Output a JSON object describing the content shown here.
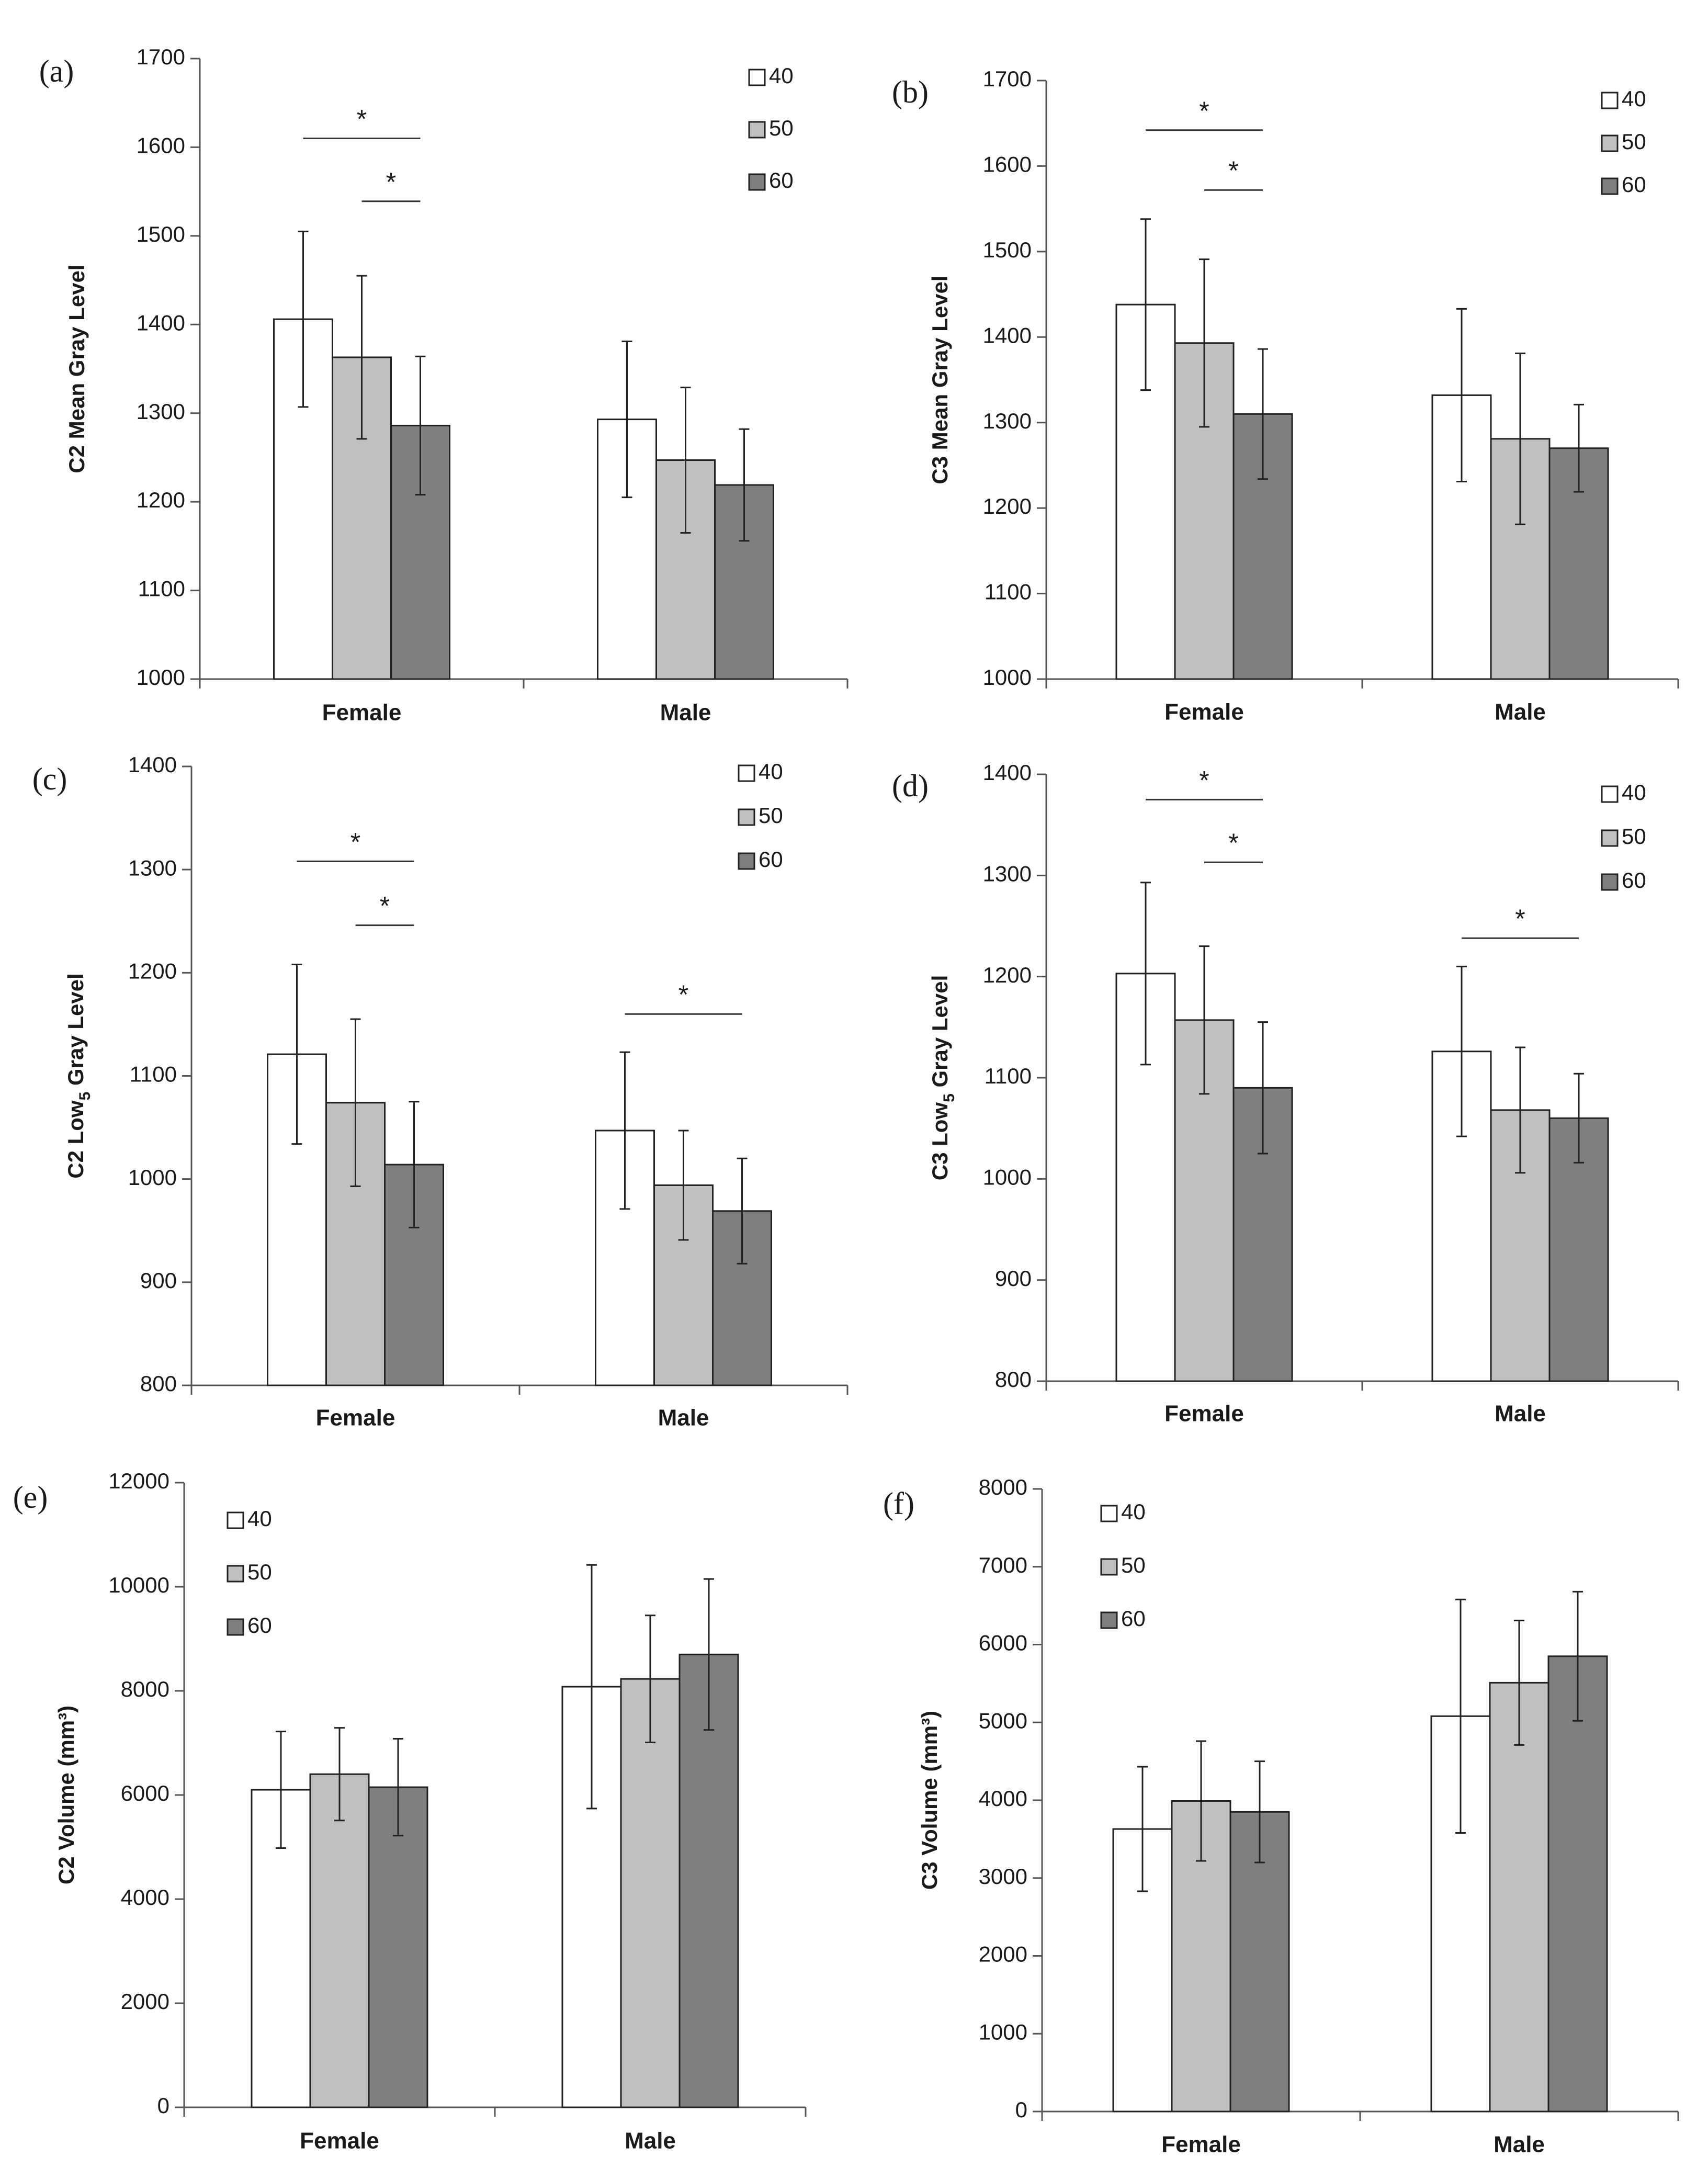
{
  "chart_data": [
    {
      "type": "bar",
      "panel_label": "(a)",
      "title": "",
      "xlabel": "",
      "ylabel": "C2 Mean Gray Level",
      "ylim": [
        1000,
        1700
      ],
      "yticks": [
        "1000",
        "1100",
        "1200",
        "1300",
        "1400",
        "1500",
        "1600",
        "1700"
      ],
      "categories": [
        "Female",
        "Male"
      ],
      "legend_position": "top-right",
      "series": [
        {
          "name": "40",
          "color": "#ffffff",
          "values": [
            1406,
            1293
          ],
          "errors": [
            99,
            88
          ]
        },
        {
          "name": "50",
          "color": "#c0c0c0",
          "values": [
            1363,
            1247
          ],
          "errors": [
            92,
            82
          ]
        },
        {
          "name": "60",
          "color": "#7f7f7f",
          "values": [
            1286,
            1219
          ],
          "errors": [
            78,
            63
          ]
        }
      ],
      "significance": [
        {
          "label": "*",
          "category": 0,
          "from_series": 0,
          "to_series": 2,
          "y": 1610
        },
        {
          "label": "*",
          "category": 0,
          "from_series": 1,
          "to_series": 2,
          "y": 1539
        }
      ]
    },
    {
      "type": "bar",
      "panel_label": "(b)",
      "title": "",
      "xlabel": "",
      "ylabel": "C3 Mean Gray Level",
      "ylim": [
        1000,
        1700
      ],
      "yticks": [
        "1000",
        "1100",
        "1200",
        "1300",
        "1400",
        "1500",
        "1600",
        "1700"
      ],
      "categories": [
        "Female",
        "Male"
      ],
      "legend_position": "top-right",
      "series": [
        {
          "name": "40",
          "color": "#ffffff",
          "values": [
            1438,
            1332
          ],
          "errors": [
            100,
            101
          ]
        },
        {
          "name": "50",
          "color": "#c0c0c0",
          "values": [
            1393,
            1281
          ],
          "errors": [
            98,
            100
          ]
        },
        {
          "name": "60",
          "color": "#7f7f7f",
          "values": [
            1310,
            1270
          ],
          "errors": [
            76,
            51
          ]
        }
      ],
      "significance": [
        {
          "label": "*",
          "category": 0,
          "from_series": 0,
          "to_series": 2,
          "y": 1642
        },
        {
          "label": "*",
          "category": 0,
          "from_series": 1,
          "to_series": 2,
          "y": 1572
        }
      ]
    },
    {
      "type": "bar",
      "panel_label": "(c)",
      "title": "",
      "xlabel": "",
      "ylabel": "C2 Low",
      "ylabel_subscript": "5",
      "ylabel_suffix": " Gray Level",
      "ylim": [
        800,
        1400
      ],
      "yticks": [
        "800",
        "900",
        "1000",
        "1100",
        "1200",
        "1300",
        "1400"
      ],
      "categories": [
        "Female",
        "Male"
      ],
      "legend_position": "top-right",
      "series": [
        {
          "name": "40",
          "color": "#ffffff",
          "values": [
            1121,
            1047
          ],
          "errors": [
            87,
            76
          ]
        },
        {
          "name": "50",
          "color": "#c0c0c0",
          "values": [
            1074,
            994
          ],
          "errors": [
            81,
            53
          ]
        },
        {
          "name": "60",
          "color": "#7f7f7f",
          "values": [
            1014,
            969
          ],
          "errors": [
            61,
            51
          ]
        }
      ],
      "significance": [
        {
          "label": "*",
          "category": 0,
          "from_series": 0,
          "to_series": 2,
          "y": 1308
        },
        {
          "label": "*",
          "category": 0,
          "from_series": 1,
          "to_series": 2,
          "y": 1246
        },
        {
          "label": "*",
          "category": 1,
          "from_series": 0,
          "to_series": 2,
          "y": 1160
        }
      ]
    },
    {
      "type": "bar",
      "panel_label": "(d)",
      "title": "",
      "xlabel": "",
      "ylabel": "C3 Low",
      "ylabel_subscript": "5",
      "ylabel_suffix": " Gray Level",
      "ylim": [
        800,
        1400
      ],
      "yticks": [
        "800",
        "900",
        "1000",
        "1100",
        "1200",
        "1300",
        "1400"
      ],
      "categories": [
        "Female",
        "Male"
      ],
      "legend_position": "top-right",
      "series": [
        {
          "name": "40",
          "color": "#ffffff",
          "values": [
            1203,
            1126
          ],
          "errors": [
            90,
            84
          ]
        },
        {
          "name": "50",
          "color": "#c0c0c0",
          "values": [
            1157,
            1068
          ],
          "errors": [
            73,
            62
          ]
        },
        {
          "name": "60",
          "color": "#7f7f7f",
          "values": [
            1090,
            1060
          ],
          "errors": [
            65,
            44
          ]
        }
      ],
      "significance": [
        {
          "label": "*",
          "category": 0,
          "from_series": 0,
          "to_series": 2,
          "y": 1375
        },
        {
          "label": "*",
          "category": 0,
          "from_series": 1,
          "to_series": 2,
          "y": 1313
        },
        {
          "label": "*",
          "category": 1,
          "from_series": 0,
          "to_series": 2,
          "y": 1238
        }
      ]
    },
    {
      "type": "bar",
      "panel_label": "(e)",
      "title": "",
      "xlabel": "",
      "ylabel": "C2 Volume (mm³)",
      "ylim": [
        0,
        12000
      ],
      "yticks": [
        "0",
        "2000",
        "4000",
        "6000",
        "8000",
        "10000",
        "12000"
      ],
      "categories": [
        "Female",
        "Male"
      ],
      "legend_position": "top-left",
      "series": [
        {
          "name": "40",
          "color": "#ffffff",
          "values": [
            6100,
            8080
          ],
          "errors": [
            1120,
            2340
          ]
        },
        {
          "name": "50",
          "color": "#c0c0c0",
          "values": [
            6400,
            8230
          ],
          "errors": [
            890,
            1220
          ]
        },
        {
          "name": "60",
          "color": "#7f7f7f",
          "values": [
            6150,
            8700
          ],
          "errors": [
            930,
            1450
          ]
        }
      ],
      "significance": []
    },
    {
      "type": "bar",
      "panel_label": "(f)",
      "title": "",
      "xlabel": "",
      "ylabel": "C3 Volume (mm³)",
      "ylim": [
        0,
        8000
      ],
      "yticks": [
        "0",
        "1000",
        "2000",
        "3000",
        "4000",
        "5000",
        "6000",
        "7000",
        "8000"
      ],
      "categories": [
        "Female",
        "Male"
      ],
      "legend_position": "top-left",
      "series": [
        {
          "name": "40",
          "color": "#ffffff",
          "values": [
            3630,
            5080
          ],
          "errors": [
            800,
            1500
          ]
        },
        {
          "name": "50",
          "color": "#c0c0c0",
          "values": [
            3990,
            5510
          ],
          "errors": [
            770,
            800
          ]
        },
        {
          "name": "60",
          "color": "#7f7f7f",
          "values": [
            3850,
            5850
          ],
          "errors": [
            650,
            830
          ]
        }
      ],
      "significance": []
    }
  ]
}
